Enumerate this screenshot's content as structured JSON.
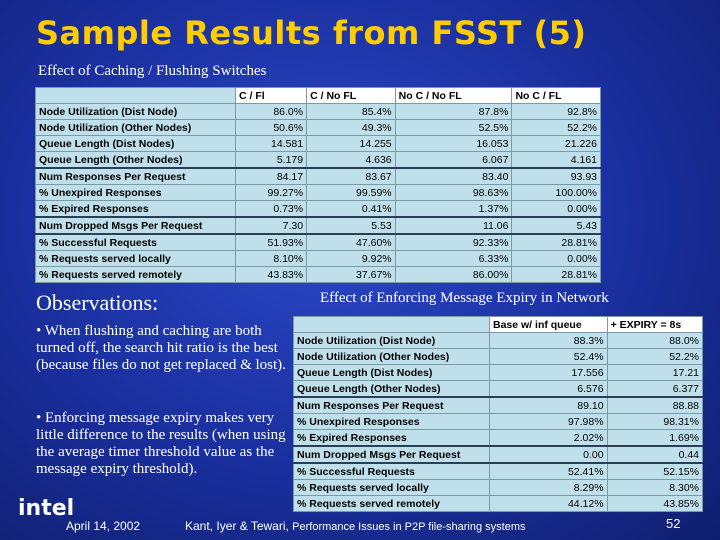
{
  "slide": {
    "title": "Sample Results from FSST (5)",
    "subtitle": "Effect of Caching / Flushing Switches",
    "observations_heading": "Observations:",
    "section2_heading": "Effect of Enforcing Message Expiry in Network",
    "bullets": [
      "When flushing and caching are both turned off, the search hit ratio is the best (because files do not get replaced & lost).",
      "Enforcing message expiry makes very little difference to the results (when using the average timer threshold value as the message expiry threshold)."
    ],
    "footer": {
      "logo": "intel",
      "date": "April 14, 2002",
      "credit_authors": "Kant, Iyer & Tewari, ",
      "credit_title": "Performance Issues in P2P file-sharing systems",
      "page": "52"
    }
  },
  "table1": {
    "headers": [
      "",
      "C / Fl",
      "C / No FL",
      "No C / No FL",
      "No C / FL"
    ],
    "rows": [
      [
        "Node Utilization (Dist Node)",
        "86.0%",
        "85.4%",
        "87.8%",
        "92.8%"
      ],
      [
        "Node Utilization (Other Nodes)",
        "50.6%",
        "49.3%",
        "52.5%",
        "52.2%"
      ],
      [
        "Queue Length (Dist Nodes)",
        "14.581",
        "14.255",
        "16.053",
        "21.226"
      ],
      [
        "Queue Length (Other Nodes)",
        "5.179",
        "4.636",
        "6.067",
        "4.161"
      ],
      [
        "Num Responses Per Request",
        "84.17",
        "83.67",
        "83.40",
        "93.93"
      ],
      [
        "% Unexpired Responses",
        "99.27%",
        "99.59%",
        "98.63%",
        "100.00%"
      ],
      [
        "% Expired Responses",
        "0.73%",
        "0.41%",
        "1.37%",
        "0.00%"
      ],
      [
        "Num Dropped Msgs Per Request",
        "7.30",
        "5.53",
        "11.06",
        "5.43"
      ],
      [
        "% Successful Requests",
        "51.93%",
        "47.60%",
        "92.33%",
        "28.81%"
      ],
      [
        "% Requests served locally",
        "8.10%",
        "9.92%",
        "6.33%",
        "0.00%"
      ],
      [
        "% Requests served remotely",
        "43.83%",
        "37.67%",
        "86.00%",
        "28.81%"
      ]
    ]
  },
  "table2": {
    "headers": [
      "",
      "Base w/ inf queue",
      "+ EXPIRY = 8s"
    ],
    "rows": [
      [
        "Node Utilization (Dist Node)",
        "88.3%",
        "88.0%"
      ],
      [
        "Node Utilization (Other Nodes)",
        "52.4%",
        "52.2%"
      ],
      [
        "Queue Length (Dist Nodes)",
        "17.556",
        "17.21"
      ],
      [
        "Queue Length (Other Nodes)",
        "6.576",
        "6.377"
      ],
      [
        "Num Responses Per Request",
        "89.10",
        "88.88"
      ],
      [
        "% Unexpired Responses",
        "97.98%",
        "98.31%"
      ],
      [
        "% Expired Responses",
        "2.02%",
        "1.69%"
      ],
      [
        "Num Dropped Msgs Per Request",
        "0.00",
        "0.44"
      ],
      [
        "% Successful Requests",
        "52.41%",
        "52.15%"
      ],
      [
        "% Requests served locally",
        "8.29%",
        "8.30%"
      ],
      [
        "% Requests served remotely",
        "44.12%",
        "43.85%"
      ]
    ]
  }
}
